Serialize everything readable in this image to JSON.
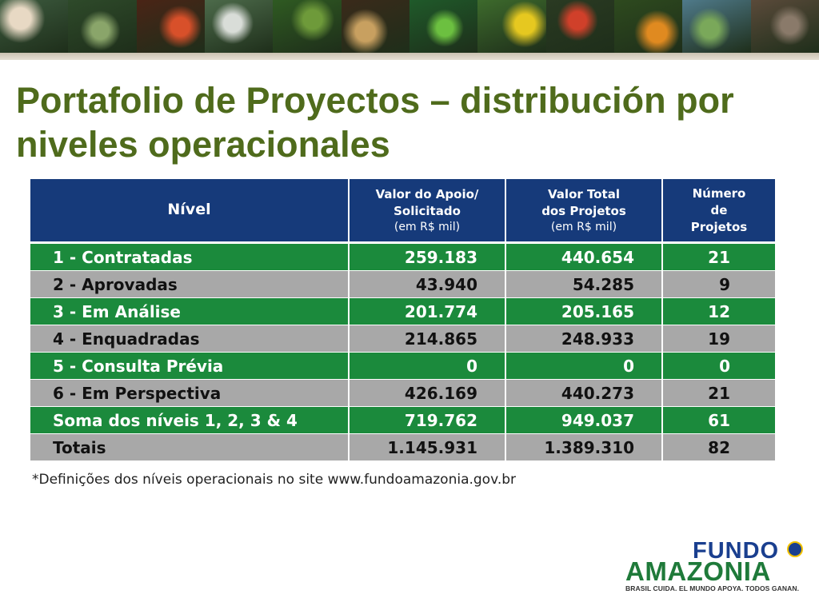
{
  "slide": {
    "title": "Portafolio de Proyectos – distribución por niveles operacionales"
  },
  "banner": {
    "photos": [
      {
        "name": "water-lily-photo",
        "base": "#3c5a3e",
        "accent": "#e8d9c4"
      },
      {
        "name": "reed-plants-photo",
        "base": "#2e4a2a",
        "accent": "#8aa56a"
      },
      {
        "name": "red-bird-photo",
        "base": "#4a2416",
        "accent": "#d8502a"
      },
      {
        "name": "riverside-house-photo",
        "base": "#4c6a4a",
        "accent": "#d9ddd8"
      },
      {
        "name": "forest-canopy-photo",
        "base": "#2f5a22",
        "accent": "#6e9a3a"
      },
      {
        "name": "ocelot-photo",
        "base": "#3a2a1a",
        "accent": "#c8a060"
      },
      {
        "name": "green-frog-photo",
        "base": "#1f5a2a",
        "accent": "#6cc040"
      },
      {
        "name": "yellow-tree-photo",
        "base": "#3d6a2c",
        "accent": "#e6c820"
      },
      {
        "name": "red-monkey-photo",
        "base": "#2a3a22",
        "accent": "#d0402a"
      },
      {
        "name": "orange-snake-photo",
        "base": "#2e4a1e",
        "accent": "#e08a20"
      },
      {
        "name": "river-landscape-photo",
        "base": "#4f7a8a",
        "accent": "#7aa85a"
      },
      {
        "name": "tree-bark-photo",
        "base": "#5a4a3a",
        "accent": "#8a7a6a"
      }
    ]
  },
  "table": {
    "headers": {
      "level": "Nível",
      "support_line1": "Valor do Apoio/",
      "support_line2": "Solicitado",
      "support_unit": "(em R$ mil)",
      "total_line1": "Valor Total",
      "total_line2": "dos Projetos",
      "total_unit": "(em R$ mil)",
      "count_line1": "Número",
      "count_line2": "de",
      "count_line3": "Projetos"
    },
    "rows": [
      {
        "level": "1 - Contratadas",
        "support": "259.183",
        "total": "440.654",
        "count": "21"
      },
      {
        "level": "2 - Aprovadas",
        "support": "43.940",
        "total": "54.285",
        "count": "9"
      },
      {
        "level": "3 - Em Análise",
        "support": "201.774",
        "total": "205.165",
        "count": "12"
      },
      {
        "level": "4 - Enquadradas",
        "support": "214.865",
        "total": "248.933",
        "count": "19"
      },
      {
        "level": "5 - Consulta Prévia",
        "support": "0",
        "total": "0",
        "count": "0"
      },
      {
        "level": "6 - Em Perspectiva",
        "support": "426.169",
        "total": "440.273",
        "count": "21"
      },
      {
        "level": "Soma dos níveis 1, 2, 3 & 4",
        "support": "719.762",
        "total": "949.037",
        "count": "61"
      },
      {
        "level": "Totais",
        "support": "1.145.931",
        "total": "1.389.310",
        "count": "82"
      }
    ]
  },
  "footnote": "*Definições dos níveis operacionais no site www.fundoamazonia.gov.br",
  "logo": {
    "line1": "FUNDO",
    "line2": "AMAZONIA",
    "tagline": "BRASIL CUIDA. EL MUNDO APOYA. TODOS GANAN."
  },
  "colors": {
    "title": "#4f6b1c",
    "header_blue": "#163a7a",
    "row_green": "#1b8a3c",
    "row_grey": "#a8a8a8",
    "logo_green": "#1f7a3a",
    "logo_blue": "#1a3f8f",
    "logo_yellow": "#f2c200"
  }
}
